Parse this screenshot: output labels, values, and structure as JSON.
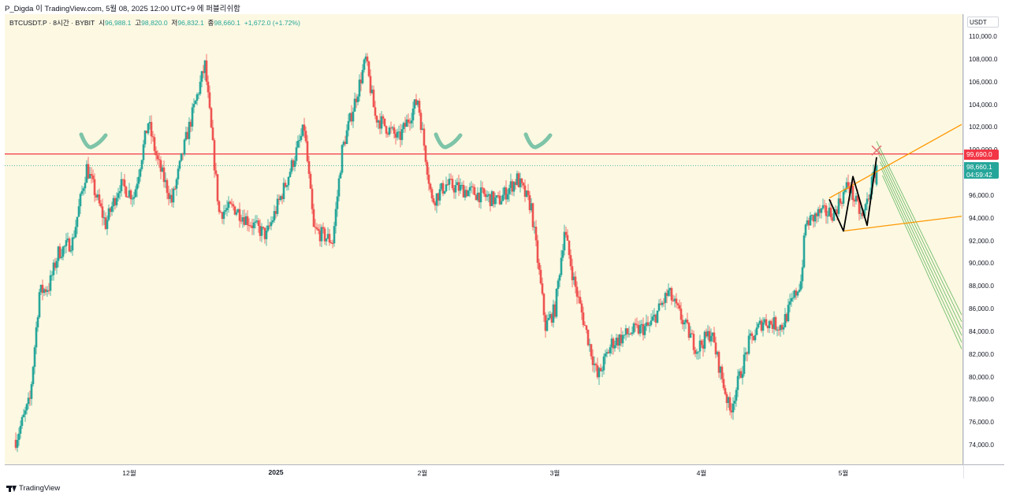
{
  "header_text": "P_Digda 이 TradingView.com, 5월 08, 2025 12:00 UTC+9 에 퍼블리쉬함",
  "legend": {
    "symbol": "BTCUSDT.P · 8시간 · BYBIT",
    "open_label": "시",
    "open": "96,988.1",
    "high_label": "고",
    "high": "98,820.0",
    "low_label": "저",
    "low": "96,832.1",
    "close_label": "종",
    "close": "98,660.1",
    "change": "+1,672.0 (+1.72%)"
  },
  "price_axis": {
    "currency": "USDT",
    "ticks": [
      "110,000.0",
      "108,000.0",
      "106,000.0",
      "104,000.0",
      "102,000.0",
      "100,000.0",
      "98,000.0",
      "96,000.0",
      "94,000.0",
      "92,000.0",
      "90,000.0",
      "88,000.0",
      "86,000.0",
      "84,000.0",
      "82,000.0",
      "80,000.0",
      "78,000.0",
      "76,000.0",
      "74,000.0"
    ]
  },
  "resistance_tag": {
    "value": "99,690.0",
    "color": "#f23645"
  },
  "last_price_tag": {
    "value": "98,660.1",
    "countdown": "04:59:42",
    "color": "#26a69a"
  },
  "time_axis": {
    "labels": [
      "12월",
      "2025",
      "2월",
      "3월",
      "4월",
      "5월"
    ]
  },
  "footer": {
    "brand": "TradingView"
  },
  "colors": {
    "up": "#26a69a",
    "down": "#ef5350",
    "background": "#fdf8e2",
    "resistance": "#f23645",
    "channel": "#ff9800",
    "pitchfan": "#4caf50",
    "pattern": "#000000",
    "checkmark": "#7ec4a8"
  },
  "chart_data": {
    "type": "candlestick",
    "symbol": "BTCUSDT.P",
    "interval": "8시간",
    "exchange": "BYBIT",
    "ylim": [
      73000,
      111000
    ],
    "resistance_level": 99690,
    "last_price": 98660.1,
    "path_points": [
      {
        "date": "2024-11-07",
        "price": 74500
      },
      {
        "date": "2024-11-10",
        "price": 78000
      },
      {
        "date": "2024-11-12",
        "price": 87500
      },
      {
        "date": "2024-11-14",
        "price": 88000
      },
      {
        "date": "2024-11-16",
        "price": 91000
      },
      {
        "date": "2024-11-19",
        "price": 92000
      },
      {
        "date": "2024-11-22",
        "price": 98500
      },
      {
        "date": "2024-11-26",
        "price": 93500
      },
      {
        "date": "2024-11-29",
        "price": 97000
      },
      {
        "date": "2024-12-02",
        "price": 96000
      },
      {
        "date": "2024-12-05",
        "price": 102500
      },
      {
        "date": "2024-12-07",
        "price": 99000
      },
      {
        "date": "2024-12-10",
        "price": 95500
      },
      {
        "date": "2024-12-13",
        "price": 101000
      },
      {
        "date": "2024-12-17",
        "price": 107500
      },
      {
        "date": "2024-12-20",
        "price": 94500
      },
      {
        "date": "2024-12-23",
        "price": 95000
      },
      {
        "date": "2024-12-27",
        "price": 93500
      },
      {
        "date": "2024-12-30",
        "price": 92500
      },
      {
        "date": "2025-01-03",
        "price": 97000
      },
      {
        "date": "2025-01-07",
        "price": 102000
      },
      {
        "date": "2025-01-09",
        "price": 93000
      },
      {
        "date": "2025-01-13",
        "price": 92000
      },
      {
        "date": "2025-01-15",
        "price": 100000
      },
      {
        "date": "2025-01-20",
        "price": 108000
      },
      {
        "date": "2025-01-22",
        "price": 103000
      },
      {
        "date": "2025-01-27",
        "price": 101000
      },
      {
        "date": "2025-01-31",
        "price": 104500
      },
      {
        "date": "2025-02-03",
        "price": 95500
      },
      {
        "date": "2025-02-06",
        "price": 97000
      },
      {
        "date": "2025-02-10",
        "price": 96500
      },
      {
        "date": "2025-02-14",
        "price": 96000
      },
      {
        "date": "2025-02-17",
        "price": 95500
      },
      {
        "date": "2025-02-21",
        "price": 97500
      },
      {
        "date": "2025-02-24",
        "price": 95000
      },
      {
        "date": "2025-02-27",
        "price": 84500
      },
      {
        "date": "2025-03-01",
        "price": 86000
      },
      {
        "date": "2025-03-03",
        "price": 93000
      },
      {
        "date": "2025-03-05",
        "price": 88500
      },
      {
        "date": "2025-03-10",
        "price": 80000
      },
      {
        "date": "2025-03-13",
        "price": 83000
      },
      {
        "date": "2025-03-17",
        "price": 84000
      },
      {
        "date": "2025-03-21",
        "price": 84500
      },
      {
        "date": "2025-03-25",
        "price": 87500
      },
      {
        "date": "2025-03-28",
        "price": 85000
      },
      {
        "date": "2025-03-31",
        "price": 82500
      },
      {
        "date": "2025-04-03",
        "price": 84000
      },
      {
        "date": "2025-04-07",
        "price": 77000
      },
      {
        "date": "2025-04-09",
        "price": 80000
      },
      {
        "date": "2025-04-11",
        "price": 83000
      },
      {
        "date": "2025-04-14",
        "price": 85000
      },
      {
        "date": "2025-04-18",
        "price": 84500
      },
      {
        "date": "2025-04-22",
        "price": 88500
      },
      {
        "date": "2025-04-23",
        "price": 93500
      },
      {
        "date": "2025-04-26",
        "price": 94500
      },
      {
        "date": "2025-04-29",
        "price": 94500
      },
      {
        "date": "2025-05-02",
        "price": 97000
      },
      {
        "date": "2025-05-05",
        "price": 94000
      },
      {
        "date": "2025-05-08",
        "price": 98660
      }
    ],
    "time_range": [
      "2024-11-07",
      "2025-05-26"
    ],
    "annotations": {
      "checkmarks": [
        {
          "date": "2024-11-23",
          "price": 100300
        },
        {
          "date": "2025-02-06",
          "price": 100300
        },
        {
          "date": "2025-02-25",
          "price": 100300
        }
      ],
      "channel": {
        "upper": [
          {
            "date": "2025-04-28",
            "price": 95800
          },
          {
            "date": "2025-05-26",
            "price": 102300
          }
        ],
        "lower": [
          {
            "date": "2025-05-01",
            "price": 92900
          },
          {
            "date": "2025-05-26",
            "price": 94200
          }
        ]
      },
      "zigzag": [
        {
          "date": "2025-04-28",
          "price": 95700
        },
        {
          "date": "2025-05-01",
          "price": 92900
        },
        {
          "date": "2025-05-03",
          "price": 97700
        },
        {
          "date": "2025-05-06",
          "price": 93400
        },
        {
          "date": "2025-05-08",
          "price": 99400
        }
      ],
      "pitchfan_origin": {
        "date": "2025-05-08",
        "price": 100800
      },
      "pitchfan_slope_price_per_day": -850,
      "x_mark": {
        "date": "2025-05-08",
        "price": 100000
      }
    }
  }
}
